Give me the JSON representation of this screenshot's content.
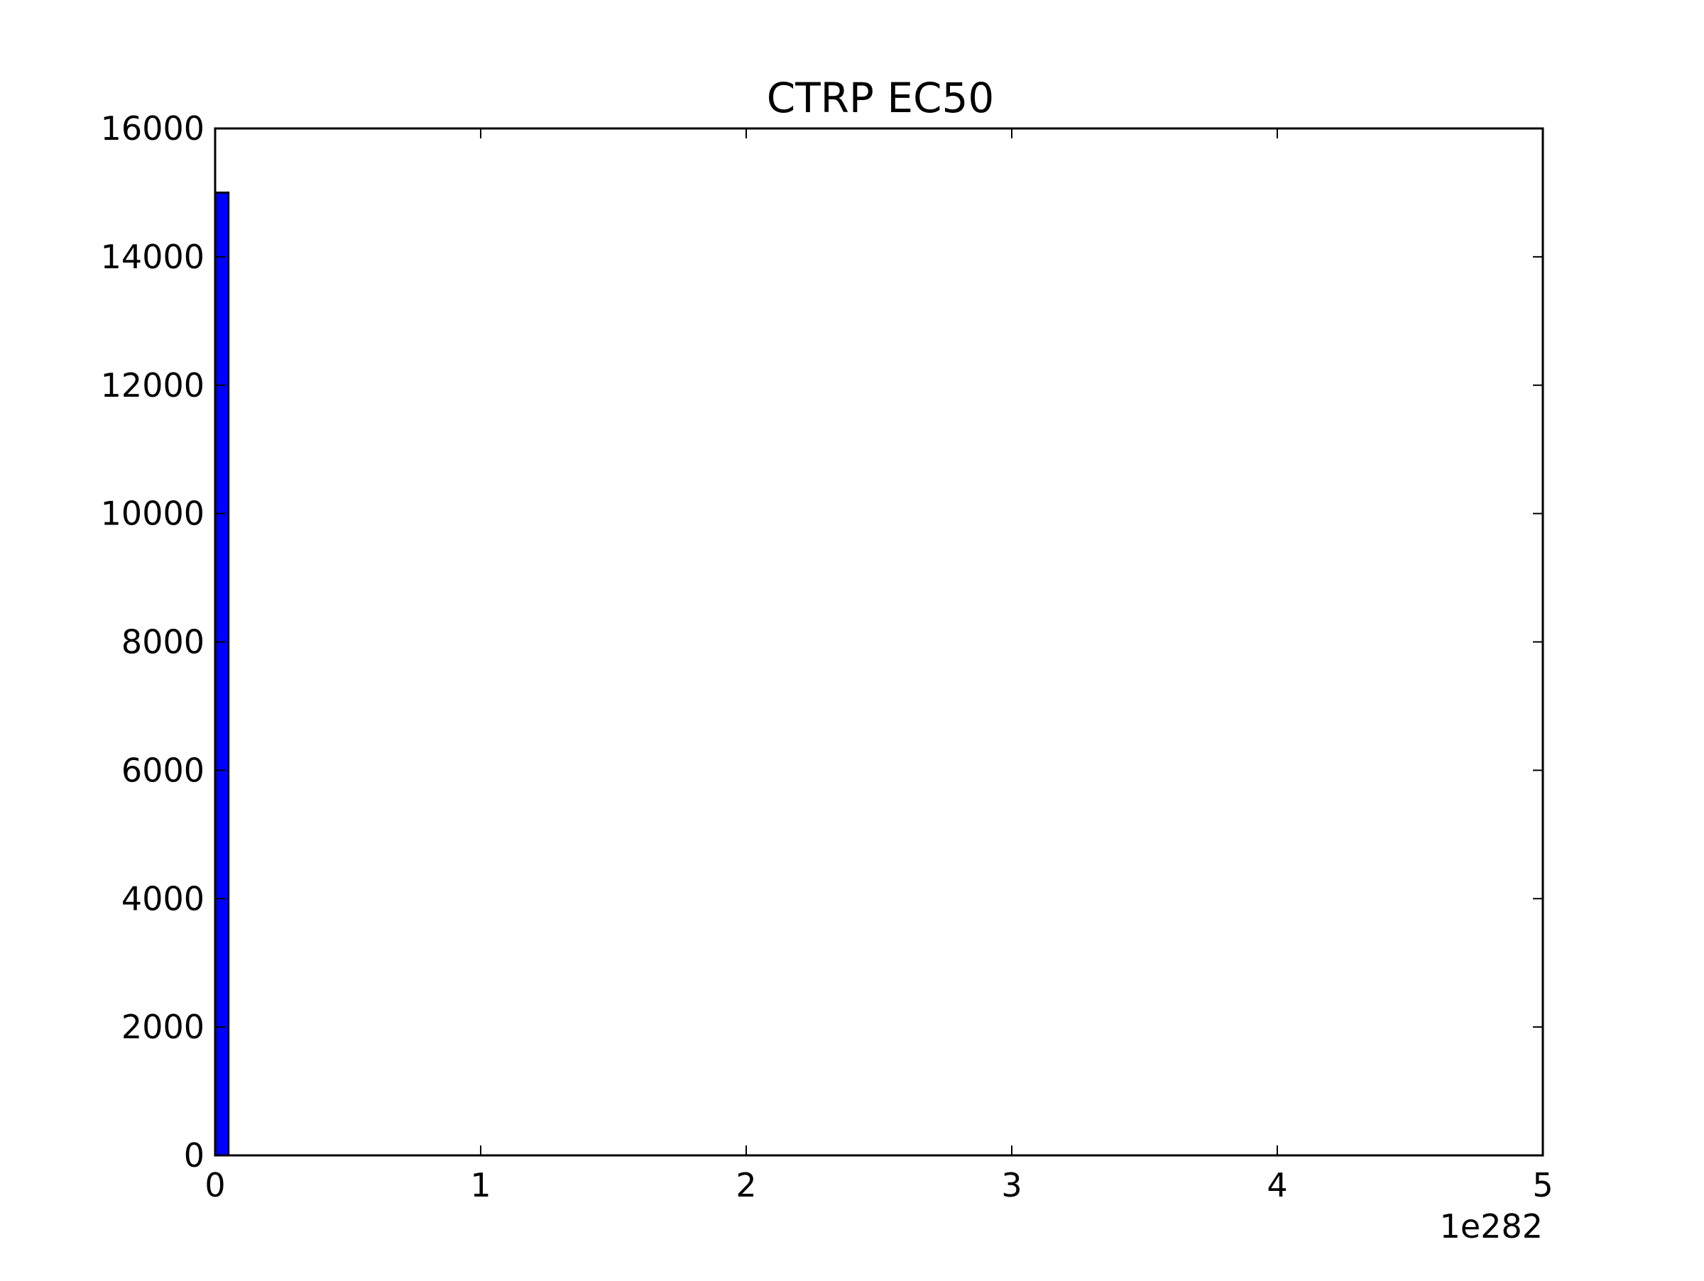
{
  "chart_data": {
    "type": "bar",
    "title": "CTRP EC50",
    "xlabel": "",
    "ylabel": "",
    "x_offset_label": "1e282",
    "xlim": [
      0,
      5
    ],
    "ylim": [
      0,
      16000
    ],
    "xticks": [
      0,
      1,
      2,
      3,
      4,
      5
    ],
    "xtick_labels": [
      "0",
      "1",
      "2",
      "3",
      "4",
      "5"
    ],
    "yticks": [
      0,
      2000,
      4000,
      6000,
      8000,
      10000,
      12000,
      14000,
      16000
    ],
    "ytick_labels": [
      "0",
      "2000",
      "4000",
      "6000",
      "8000",
      "10000",
      "12000",
      "14000",
      "16000"
    ],
    "bins": [
      {
        "x0": 0,
        "x1": 0.05,
        "count": 15000
      }
    ],
    "bar_color": "#0000ff",
    "bar_edge_color": "#000000",
    "grid": false,
    "legend": "none"
  }
}
